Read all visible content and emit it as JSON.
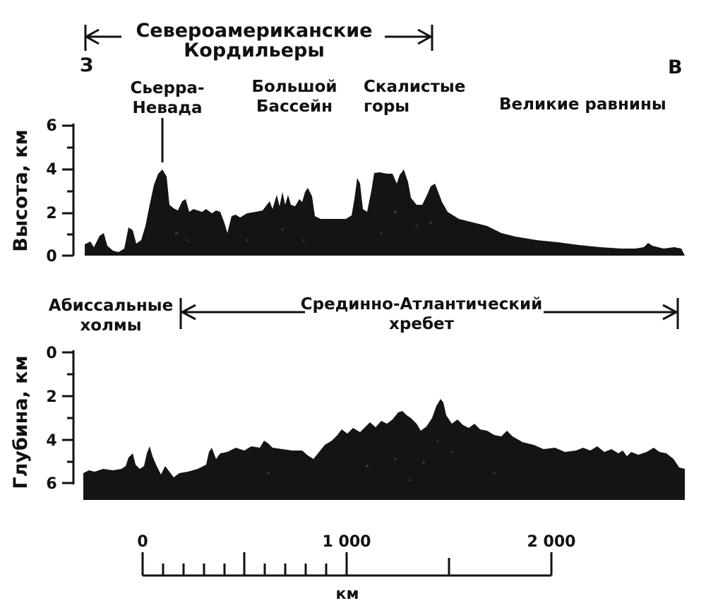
{
  "top_header": {
    "range_name_line1": "Североамериканские",
    "range_name_line2": "Кордильеры",
    "west": "З",
    "east": "В"
  },
  "regions": {
    "sierra_line1": "Сьерра-",
    "sierra_line2": "Невада",
    "basin_line1": "Большой",
    "basin_line2": "Бассейн",
    "rocky_line1": "Скалистые",
    "rocky_line2": "горы",
    "plains": "Великие равнины"
  },
  "top_axis": {
    "label": "Высота, км",
    "ticks": [
      "6",
      "4",
      "2",
      "0"
    ]
  },
  "bottom_header": {
    "abyssal_line1": "Абиссальные",
    "abyssal_line2": "холмы",
    "ridge_line1": "Срединно-Атлантический",
    "ridge_line2": "хребет"
  },
  "bottom_axis": {
    "label": "Глубина, км",
    "ticks": [
      "0",
      "2",
      "4",
      "6"
    ]
  },
  "scale": {
    "ticks": [
      "0",
      "1 000",
      "2 000"
    ],
    "unit": "км"
  },
  "colors": {
    "ink": "#111111",
    "terrain": "#141414",
    "background": "#ffffff"
  }
}
